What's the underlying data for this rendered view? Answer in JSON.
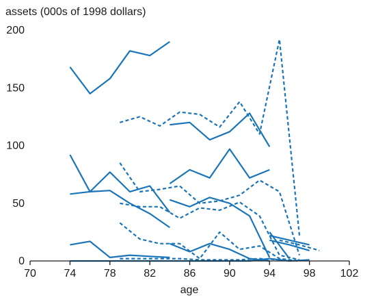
{
  "chart_data": {
    "type": "line",
    "title": "",
    "ylabel": "assets (000s of 1998 dollars)",
    "xlabel": "age",
    "xlim": [
      70,
      102
    ],
    "ylim": [
      0,
      200
    ],
    "xticks": [
      "70",
      "74",
      "78",
      "82",
      "86",
      "90",
      "94",
      "98",
      "102"
    ],
    "yticks": [
      "0",
      "50",
      "100",
      "150",
      "200"
    ],
    "color": "#1a74b8",
    "series": [
      {
        "style": "solid",
        "x": [
          74,
          76,
          78,
          80,
          82,
          84
        ],
        "y": [
          168,
          145,
          158,
          182,
          178,
          190
        ]
      },
      {
        "style": "solid",
        "x": [
          84,
          86,
          88,
          90,
          92,
          94
        ],
        "y": [
          118,
          120,
          105,
          112,
          128,
          99
        ]
      },
      {
        "style": "solid",
        "x": [
          74,
          76,
          78,
          80,
          82,
          84
        ],
        "y": [
          92,
          60,
          77,
          60,
          65,
          42
        ]
      },
      {
        "style": "solid",
        "x": [
          84,
          86,
          88,
          90,
          92,
          94
        ],
        "y": [
          67,
          79,
          72,
          97,
          72,
          79
        ]
      },
      {
        "style": "solid",
        "x": [
          74,
          76,
          78,
          80,
          82,
          84
        ],
        "y": [
          58,
          60,
          61,
          50,
          41,
          29
        ]
      },
      {
        "style": "solid",
        "x": [
          84,
          86,
          88,
          90,
          92,
          94
        ],
        "y": [
          53,
          47,
          55,
          50,
          39,
          3
        ]
      },
      {
        "style": "solid",
        "x": [
          74,
          76,
          78,
          80,
          82,
          84
        ],
        "y": [
          14,
          17,
          3,
          5,
          4,
          3
        ]
      },
      {
        "style": "solid",
        "x": [
          84,
          86,
          88,
          90,
          92,
          94
        ],
        "y": [
          15,
          8,
          15,
          10,
          2,
          0
        ]
      },
      {
        "style": "solid",
        "x": [
          74,
          76,
          78,
          80,
          82,
          84
        ],
        "y": [
          0,
          0,
          0,
          0,
          0,
          0
        ]
      },
      {
        "style": "solid",
        "x": [
          84,
          86,
          88,
          90,
          92,
          94
        ],
        "y": [
          0,
          0,
          0,
          0,
          0,
          2
        ]
      },
      {
        "style": "solid",
        "x": [
          94,
          96,
          98
        ],
        "y": [
          22,
          18,
          14
        ]
      },
      {
        "style": "solid",
        "x": [
          94,
          96
        ],
        "y": [
          25,
          2
        ]
      },
      {
        "style": "solid",
        "x": [
          94,
          96,
          98
        ],
        "y": [
          18,
          14,
          9
        ]
      },
      {
        "style": "solid",
        "x": [
          94,
          96,
          98
        ],
        "y": [
          2,
          0,
          1
        ]
      },
      {
        "style": "dashed",
        "x": [
          79,
          81,
          83,
          85,
          87,
          89,
          91,
          93,
          95,
          97
        ],
        "y": [
          120,
          125,
          117,
          129,
          127,
          116,
          138,
          110,
          192,
          22
        ]
      },
      {
        "style": "dashed",
        "x": [
          79,
          81,
          83,
          85,
          87,
          89,
          91,
          93,
          95,
          97
        ],
        "y": [
          85,
          60,
          62,
          65,
          50,
          52,
          57,
          70,
          60,
          5
        ]
      },
      {
        "style": "dashed",
        "x": [
          79,
          81,
          83,
          85,
          87,
          89,
          91,
          93,
          95,
          97
        ],
        "y": [
          50,
          47,
          47,
          37,
          46,
          44,
          51,
          39,
          5,
          1
        ]
      },
      {
        "style": "dashed",
        "x": [
          79,
          81,
          83,
          85,
          87,
          89,
          91,
          93,
          95,
          97
        ],
        "y": [
          33,
          19,
          15,
          15,
          2,
          25,
          10,
          13,
          2,
          0
        ]
      },
      {
        "style": "dashed",
        "x": [
          79,
          81,
          83,
          85,
          87,
          89,
          91,
          93,
          95,
          97
        ],
        "y": [
          2,
          2,
          2,
          2,
          1,
          1,
          1,
          2,
          1,
          0
        ]
      },
      {
        "style": "dashed",
        "x": [
          95,
          97,
          99
        ],
        "y": [
          18,
          14,
          9
        ]
      }
    ]
  }
}
